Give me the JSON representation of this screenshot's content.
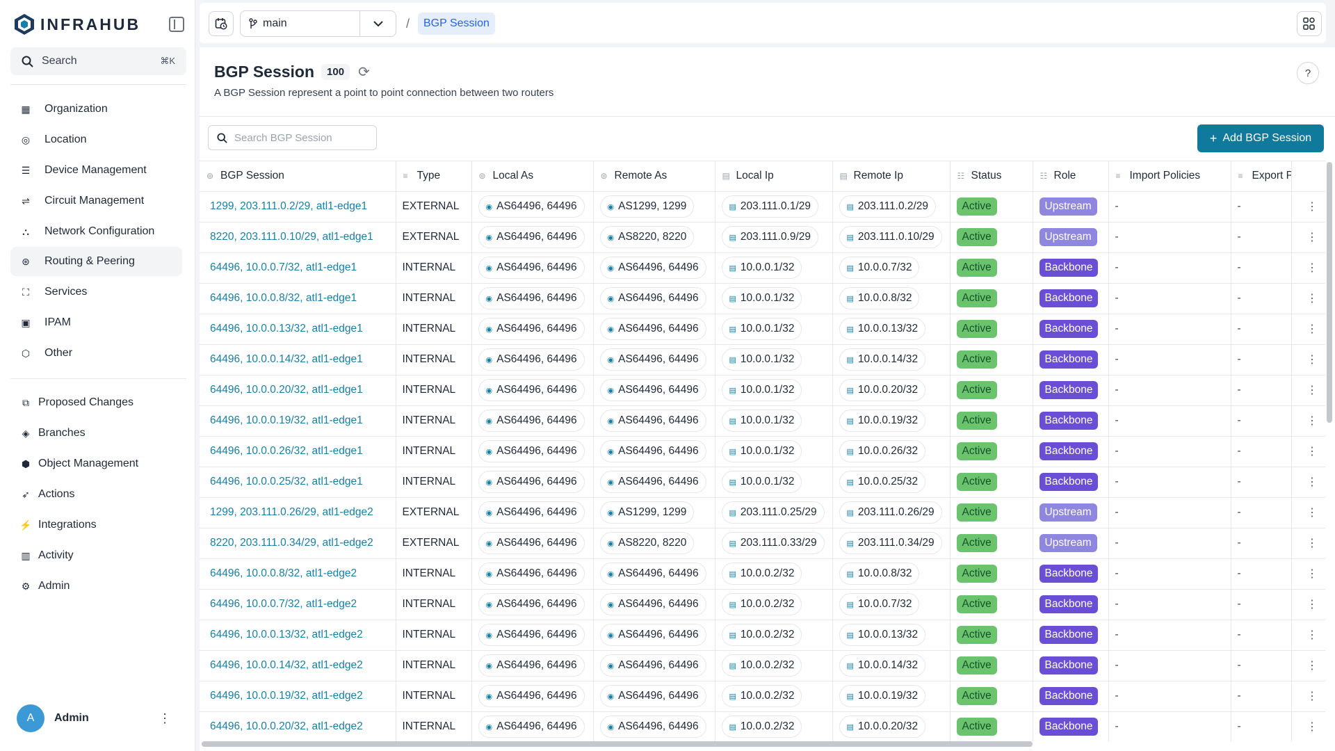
{
  "app": {
    "name": "INFRAHUB"
  },
  "search": {
    "label": "Search",
    "shortcut": "⌘K"
  },
  "sidebar": {
    "primary": [
      {
        "label": "Organization",
        "icon": "building-icon"
      },
      {
        "label": "Location",
        "icon": "pin-icon"
      },
      {
        "label": "Device Management",
        "icon": "server-icon"
      },
      {
        "label": "Circuit Management",
        "icon": "circuit-icon"
      },
      {
        "label": "Network Configuration",
        "icon": "network-icon"
      },
      {
        "label": "Routing & Peering",
        "icon": "routing-icon"
      },
      {
        "label": "Services",
        "icon": "services-icon"
      },
      {
        "label": "IPAM",
        "icon": "ipam-icon"
      },
      {
        "label": "Other",
        "icon": "cube-icon"
      }
    ],
    "secondary": [
      {
        "label": "Proposed Changes",
        "icon": "proposed-changes-icon"
      },
      {
        "label": "Branches",
        "icon": "layers-icon"
      },
      {
        "label": "Object Management",
        "icon": "box-icon"
      },
      {
        "label": "Actions",
        "icon": "rocket-icon"
      },
      {
        "label": "Integrations",
        "icon": "plug-icon"
      },
      {
        "label": "Activity",
        "icon": "chart-icon"
      },
      {
        "label": "Admin",
        "icon": "gear-icon"
      }
    ],
    "user": {
      "initial": "A",
      "name": "Admin"
    }
  },
  "topbar": {
    "branch": "main",
    "breadcrumb": "BGP Session"
  },
  "page": {
    "title": "BGP Session",
    "count": "100",
    "description": "A BGP Session represent a point to point connection between two routers",
    "search_placeholder": "Search BGP Session",
    "add_label": "Add BGP Session"
  },
  "table": {
    "columns": [
      "BGP Session",
      "Type",
      "Local As",
      "Remote As",
      "Local Ip",
      "Remote Ip",
      "Status",
      "Role",
      "Import Policies",
      "Export P"
    ],
    "rows": [
      {
        "name": "1299, 203.111.0.2/29, atl1-edge1",
        "type": "EXTERNAL",
        "local_as": "AS64496, 64496",
        "remote_as": "AS1299, 1299",
        "local_ip": "203.111.0.1/29",
        "remote_ip": "203.111.0.2/29",
        "status": "Active",
        "role": "Upstream",
        "import": "-",
        "export": "-"
      },
      {
        "name": "8220, 203.111.0.10/29, atl1-edge1",
        "type": "EXTERNAL",
        "local_as": "AS64496, 64496",
        "remote_as": "AS8220, 8220",
        "local_ip": "203.111.0.9/29",
        "remote_ip": "203.111.0.10/29",
        "status": "Active",
        "role": "Upstream",
        "import": "-",
        "export": "-"
      },
      {
        "name": "64496, 10.0.0.7/32, atl1-edge1",
        "type": "INTERNAL",
        "local_as": "AS64496, 64496",
        "remote_as": "AS64496, 64496",
        "local_ip": "10.0.0.1/32",
        "remote_ip": "10.0.0.7/32",
        "status": "Active",
        "role": "Backbone",
        "import": "-",
        "export": "-"
      },
      {
        "name": "64496, 10.0.0.8/32, atl1-edge1",
        "type": "INTERNAL",
        "local_as": "AS64496, 64496",
        "remote_as": "AS64496, 64496",
        "local_ip": "10.0.0.1/32",
        "remote_ip": "10.0.0.8/32",
        "status": "Active",
        "role": "Backbone",
        "import": "-",
        "export": "-"
      },
      {
        "name": "64496, 10.0.0.13/32, atl1-edge1",
        "type": "INTERNAL",
        "local_as": "AS64496, 64496",
        "remote_as": "AS64496, 64496",
        "local_ip": "10.0.0.1/32",
        "remote_ip": "10.0.0.13/32",
        "status": "Active",
        "role": "Backbone",
        "import": "-",
        "export": "-"
      },
      {
        "name": "64496, 10.0.0.14/32, atl1-edge1",
        "type": "INTERNAL",
        "local_as": "AS64496, 64496",
        "remote_as": "AS64496, 64496",
        "local_ip": "10.0.0.1/32",
        "remote_ip": "10.0.0.14/32",
        "status": "Active",
        "role": "Backbone",
        "import": "-",
        "export": "-"
      },
      {
        "name": "64496, 10.0.0.20/32, atl1-edge1",
        "type": "INTERNAL",
        "local_as": "AS64496, 64496",
        "remote_as": "AS64496, 64496",
        "local_ip": "10.0.0.1/32",
        "remote_ip": "10.0.0.20/32",
        "status": "Active",
        "role": "Backbone",
        "import": "-",
        "export": "-"
      },
      {
        "name": "64496, 10.0.0.19/32, atl1-edge1",
        "type": "INTERNAL",
        "local_as": "AS64496, 64496",
        "remote_as": "AS64496, 64496",
        "local_ip": "10.0.0.1/32",
        "remote_ip": "10.0.0.19/32",
        "status": "Active",
        "role": "Backbone",
        "import": "-",
        "export": "-"
      },
      {
        "name": "64496, 10.0.0.26/32, atl1-edge1",
        "type": "INTERNAL",
        "local_as": "AS64496, 64496",
        "remote_as": "AS64496, 64496",
        "local_ip": "10.0.0.1/32",
        "remote_ip": "10.0.0.26/32",
        "status": "Active",
        "role": "Backbone",
        "import": "-",
        "export": "-"
      },
      {
        "name": "64496, 10.0.0.25/32, atl1-edge1",
        "type": "INTERNAL",
        "local_as": "AS64496, 64496",
        "remote_as": "AS64496, 64496",
        "local_ip": "10.0.0.1/32",
        "remote_ip": "10.0.0.25/32",
        "status": "Active",
        "role": "Backbone",
        "import": "-",
        "export": "-"
      },
      {
        "name": "1299, 203.111.0.26/29, atl1-edge2",
        "type": "EXTERNAL",
        "local_as": "AS64496, 64496",
        "remote_as": "AS1299, 1299",
        "local_ip": "203.111.0.25/29",
        "remote_ip": "203.111.0.26/29",
        "status": "Active",
        "role": "Upstream",
        "import": "-",
        "export": "-"
      },
      {
        "name": "8220, 203.111.0.34/29, atl1-edge2",
        "type": "EXTERNAL",
        "local_as": "AS64496, 64496",
        "remote_as": "AS8220, 8220",
        "local_ip": "203.111.0.33/29",
        "remote_ip": "203.111.0.34/29",
        "status": "Active",
        "role": "Upstream",
        "import": "-",
        "export": "-"
      },
      {
        "name": "64496, 10.0.0.8/32, atl1-edge2",
        "type": "INTERNAL",
        "local_as": "AS64496, 64496",
        "remote_as": "AS64496, 64496",
        "local_ip": "10.0.0.2/32",
        "remote_ip": "10.0.0.8/32",
        "status": "Active",
        "role": "Backbone",
        "import": "-",
        "export": "-"
      },
      {
        "name": "64496, 10.0.0.7/32, atl1-edge2",
        "type": "INTERNAL",
        "local_as": "AS64496, 64496",
        "remote_as": "AS64496, 64496",
        "local_ip": "10.0.0.2/32",
        "remote_ip": "10.0.0.7/32",
        "status": "Active",
        "role": "Backbone",
        "import": "-",
        "export": "-"
      },
      {
        "name": "64496, 10.0.0.13/32, atl1-edge2",
        "type": "INTERNAL",
        "local_as": "AS64496, 64496",
        "remote_as": "AS64496, 64496",
        "local_ip": "10.0.0.2/32",
        "remote_ip": "10.0.0.13/32",
        "status": "Active",
        "role": "Backbone",
        "import": "-",
        "export": "-"
      },
      {
        "name": "64496, 10.0.0.14/32, atl1-edge2",
        "type": "INTERNAL",
        "local_as": "AS64496, 64496",
        "remote_as": "AS64496, 64496",
        "local_ip": "10.0.0.2/32",
        "remote_ip": "10.0.0.14/32",
        "status": "Active",
        "role": "Backbone",
        "import": "-",
        "export": "-"
      },
      {
        "name": "64496, 10.0.0.19/32, atl1-edge2",
        "type": "INTERNAL",
        "local_as": "AS64496, 64496",
        "remote_as": "AS64496, 64496",
        "local_ip": "10.0.0.2/32",
        "remote_ip": "10.0.0.19/32",
        "status": "Active",
        "role": "Backbone",
        "import": "-",
        "export": "-"
      },
      {
        "name": "64496, 10.0.0.20/32, atl1-edge2",
        "type": "INTERNAL",
        "local_as": "AS64496, 64496",
        "remote_as": "AS64496, 64496",
        "local_ip": "10.0.0.2/32",
        "remote_ip": "10.0.0.20/32",
        "status": "Active",
        "role": "Backbone",
        "import": "-",
        "export": "-"
      }
    ]
  },
  "colors": {
    "accent": "#0f7a9c",
    "link": "#1580a8",
    "status_active": "#6bc46d",
    "role_upstream": "#8f86e0",
    "role_backbone": "#6a4fd6"
  }
}
